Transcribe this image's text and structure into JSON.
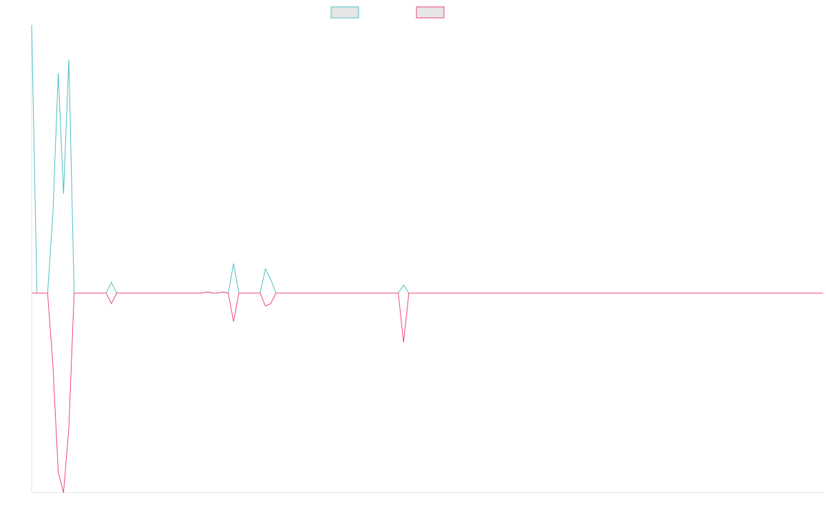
{
  "chart_data": {
    "type": "line",
    "title": "",
    "xlabel": "",
    "ylabel": "",
    "x_count": 150,
    "ylim": [
      -1.0,
      1.0
    ],
    "grid": false,
    "legend": {
      "placement": "top-center"
    },
    "series": [
      {
        "color": "#4bbec4",
        "points": [
          [
            0,
            1.0
          ],
          [
            1,
            0.0
          ],
          [
            2,
            0.0
          ],
          [
            3,
            0.0
          ],
          [
            4,
            0.3
          ],
          [
            5,
            0.82
          ],
          [
            6,
            0.37
          ],
          [
            7,
            0.87
          ],
          [
            8,
            0.0
          ],
          [
            14,
            0.0
          ],
          [
            15,
            0.04
          ],
          [
            16,
            0.0
          ],
          [
            32,
            0.0
          ],
          [
            33,
            0.004
          ],
          [
            34,
            0.0
          ],
          [
            35,
            0.0
          ],
          [
            36,
            0.004
          ],
          [
            37,
            0.0
          ],
          [
            38,
            0.11
          ],
          [
            39,
            0.0
          ],
          [
            43,
            0.0
          ],
          [
            44,
            0.09
          ],
          [
            45,
            0.05
          ],
          [
            46,
            0.0
          ],
          [
            69,
            0.0
          ],
          [
            70,
            0.03
          ],
          [
            71,
            0.0
          ],
          [
            149,
            0.0
          ]
        ]
      },
      {
        "color": "#f0436d",
        "points": [
          [
            0,
            0.0
          ],
          [
            1,
            0.0
          ],
          [
            2,
            0.0
          ],
          [
            3,
            0.0
          ],
          [
            4,
            -0.28
          ],
          [
            5,
            -0.69
          ],
          [
            6,
            -0.77
          ],
          [
            7,
            -0.52
          ],
          [
            8,
            0.0
          ],
          [
            14,
            0.0
          ],
          [
            15,
            -0.04
          ],
          [
            16,
            0.0
          ],
          [
            32,
            0.0
          ],
          [
            33,
            0.004
          ],
          [
            34,
            0.0
          ],
          [
            35,
            0.0
          ],
          [
            36,
            0.004
          ],
          [
            37,
            0.0
          ],
          [
            38,
            -0.11
          ],
          [
            39,
            0.0
          ],
          [
            43,
            0.0
          ],
          [
            44,
            -0.05
          ],
          [
            45,
            -0.04
          ],
          [
            46,
            0.0
          ],
          [
            69,
            0.0
          ],
          [
            70,
            -0.19
          ],
          [
            71,
            0.0
          ],
          [
            149,
            0.0
          ]
        ]
      }
    ]
  }
}
